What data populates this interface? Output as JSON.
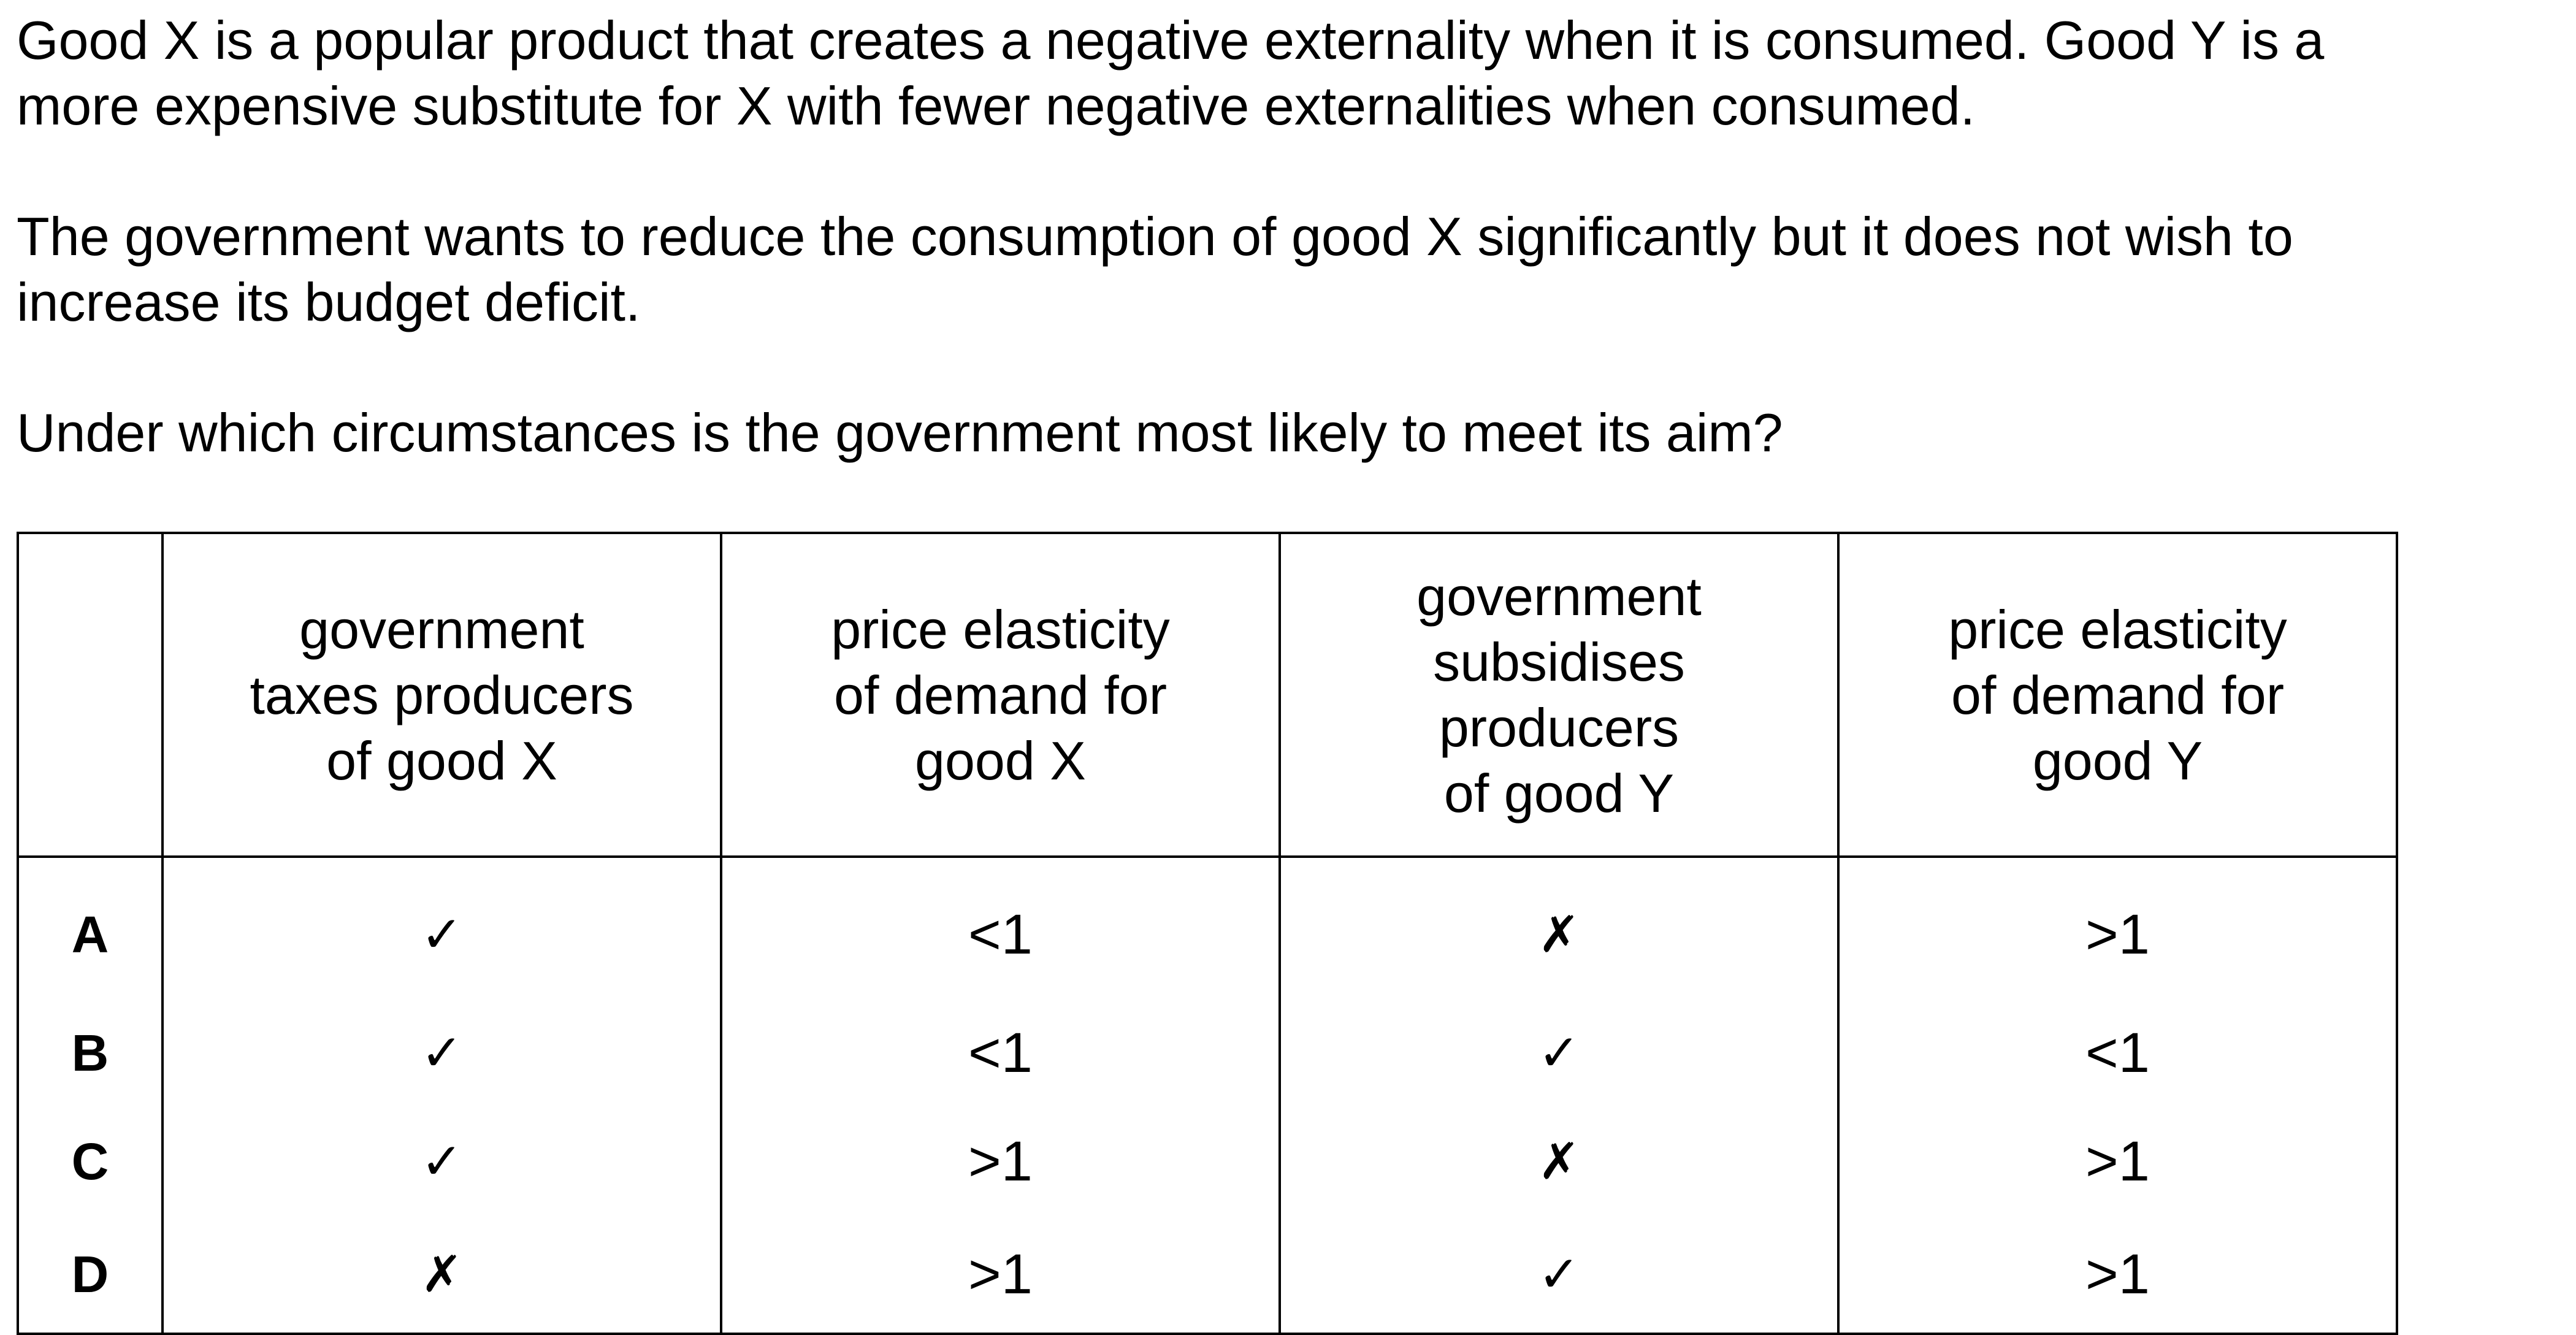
{
  "question": {
    "paragraph_1": [
      "Good X is a popular product that creates a negative externality when it is consumed. Good Y is a",
      "more expensive substitute for X with fewer negative externalities when consumed."
    ],
    "paragraph_2": [
      "The government wants to reduce the consumption of good X significantly but it does not wish to",
      "increase its budget deficit."
    ],
    "prompt": "Under which circumstances is the government most likely to meet its aim?"
  },
  "table": {
    "headers": [
      "",
      [
        "government",
        "taxes producers",
        "of good X"
      ],
      [
        "price elasticity",
        "of demand for",
        "good X"
      ],
      [
        "government",
        "subsidises",
        "producers",
        "of good Y"
      ],
      [
        "price elasticity",
        "of demand for",
        "good Y"
      ]
    ],
    "rows": [
      {
        "label": "A",
        "cells": [
          "✓",
          "<1",
          "✗",
          ">1"
        ]
      },
      {
        "label": "B",
        "cells": [
          "✓",
          "<1",
          "✓",
          "<1"
        ]
      },
      {
        "label": "C",
        "cells": [
          "✓",
          ">1",
          "✗",
          ">1"
        ]
      },
      {
        "label": "D",
        "cells": [
          "✗",
          ">1",
          "✓",
          ">1"
        ]
      }
    ]
  }
}
